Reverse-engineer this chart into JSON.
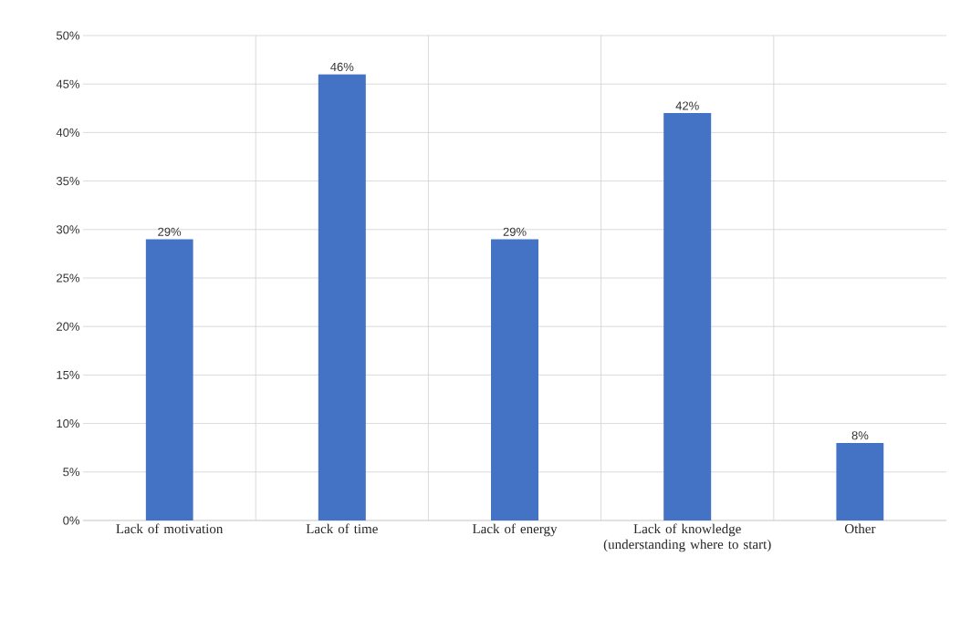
{
  "chart_data": {
    "type": "bar",
    "categories": [
      "Lack of motivation",
      "Lack of time",
      "Lack of energy",
      "Lack of knowledge (understanding where to start)",
      "Other"
    ],
    "values": [
      29,
      46,
      29,
      42,
      8
    ],
    "value_labels": [
      "29%",
      "46%",
      "29%",
      "42%",
      "8%"
    ],
    "color": "#4472c4",
    "ylim": [
      0,
      50
    ],
    "yticks": [
      {
        "value": 0,
        "label": "0%"
      },
      {
        "value": 5,
        "label": "5%"
      },
      {
        "value": 10,
        "label": "10%"
      },
      {
        "value": 15,
        "label": "15%"
      },
      {
        "value": 20,
        "label": "20%"
      },
      {
        "value": 25,
        "label": "25%"
      },
      {
        "value": 30,
        "label": "30%"
      },
      {
        "value": 35,
        "label": "35%"
      },
      {
        "value": 40,
        "label": "40%"
      },
      {
        "value": 45,
        "label": "45%"
      },
      {
        "value": 50,
        "label": "50%"
      }
    ],
    "grid": true
  }
}
